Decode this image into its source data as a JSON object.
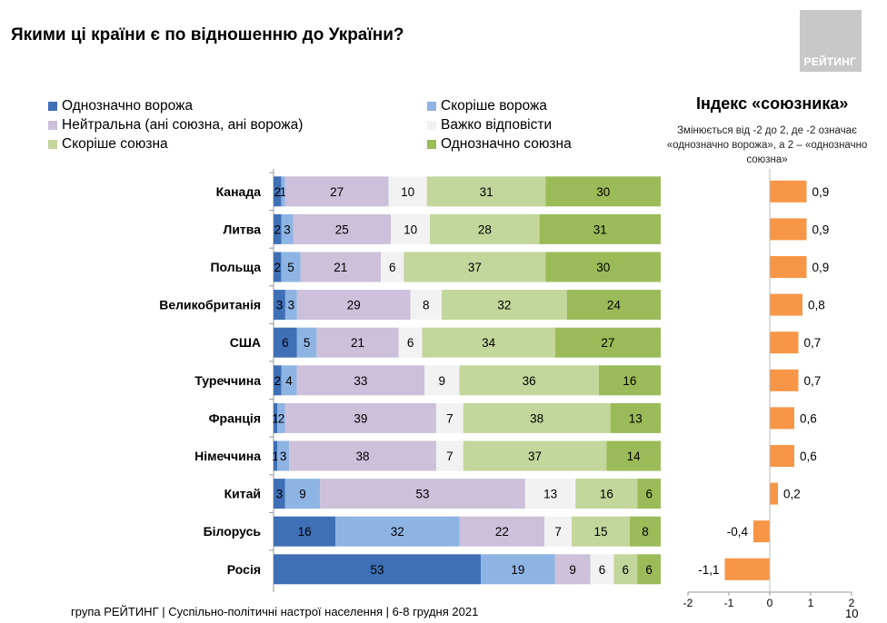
{
  "title": "Якими ці країни є по відношенню до України?",
  "brand": "РЕЙТИНГ",
  "legend": [
    {
      "label": "Однозначно ворожа",
      "color": "#3f6fb5"
    },
    {
      "label": "Скоріше ворожа",
      "color": "#8eb4e3"
    },
    {
      "label": "Нейтральна (ані союзна, ані ворожа)",
      "color": "#ccc0da"
    },
    {
      "label": "Важко відповісти",
      "color": "#f2f2f2"
    },
    {
      "label": "Скоріше союзна",
      "color": "#c3d69b"
    },
    {
      "label": "Однозначно союзна",
      "color": "#9bbb59"
    }
  ],
  "index_title": "Індекс «союзника»",
  "index_note": "Змінюється від -2 до 2, де -2 означає «однозначно ворожа», а 2 – «однозначно союзна»",
  "footer": "група РЕЙТИНГ | Суспільно-політичні настрої населення  | 6-8 грудня 2021",
  "page_number": "10",
  "chart_data": [
    {
      "type": "bar",
      "stacked": true,
      "orientation": "horizontal",
      "categories": [
        "Канада",
        "Литва",
        "Польща",
        "Великобританія",
        "США",
        "Туреччина",
        "Франція",
        "Німеччина",
        "Китай",
        "Білорусь",
        "Росія"
      ],
      "series": [
        {
          "name": "Однозначно ворожа",
          "color": "#3f6fb5",
          "values": [
            2,
            2,
            2,
            3,
            6,
            2,
            1,
            1,
            3,
            16,
            53
          ]
        },
        {
          "name": "Скоріше ворожа",
          "color": "#8eb4e3",
          "values": [
            1,
            3,
            5,
            3,
            5,
            4,
            2,
            3,
            9,
            32,
            19
          ]
        },
        {
          "name": "Нейтральна (ані союзна, ані ворожа)",
          "color": "#ccc0da",
          "values": [
            27,
            25,
            21,
            29,
            21,
            33,
            39,
            38,
            53,
            22,
            9
          ]
        },
        {
          "name": "Важко відповісти",
          "color": "#f2f2f2",
          "values": [
            10,
            10,
            6,
            8,
            6,
            9,
            7,
            7,
            13,
            7,
            6
          ]
        },
        {
          "name": "Скоріше союзна",
          "color": "#c3d69b",
          "values": [
            31,
            28,
            37,
            32,
            34,
            36,
            38,
            37,
            16,
            15,
            6
          ]
        },
        {
          "name": "Однозначно союзна",
          "color": "#9bbb59",
          "values": [
            30,
            31,
            30,
            24,
            27,
            16,
            13,
            14,
            6,
            8,
            6
          ]
        }
      ]
    },
    {
      "type": "bar",
      "orientation": "horizontal",
      "categories": [
        "Канада",
        "Литва",
        "Польща",
        "Великобританія",
        "США",
        "Туреччина",
        "Франція",
        "Німеччина",
        "Китай",
        "Білорусь",
        "Росія"
      ],
      "values": [
        0.9,
        0.9,
        0.9,
        0.8,
        0.7,
        0.7,
        0.6,
        0.6,
        0.2,
        -0.4,
        -1.1
      ],
      "value_labels": [
        "0,9",
        "0,9",
        "0,9",
        "0,8",
        "0,7",
        "0,7",
        "0,6",
        "0,6",
        "0,2",
        "-0,4",
        "-1,1"
      ],
      "color": "#f79646",
      "xlim": [
        -2,
        2
      ],
      "x_ticks": [
        "-2",
        "-1",
        "0",
        "1",
        "2"
      ]
    }
  ]
}
